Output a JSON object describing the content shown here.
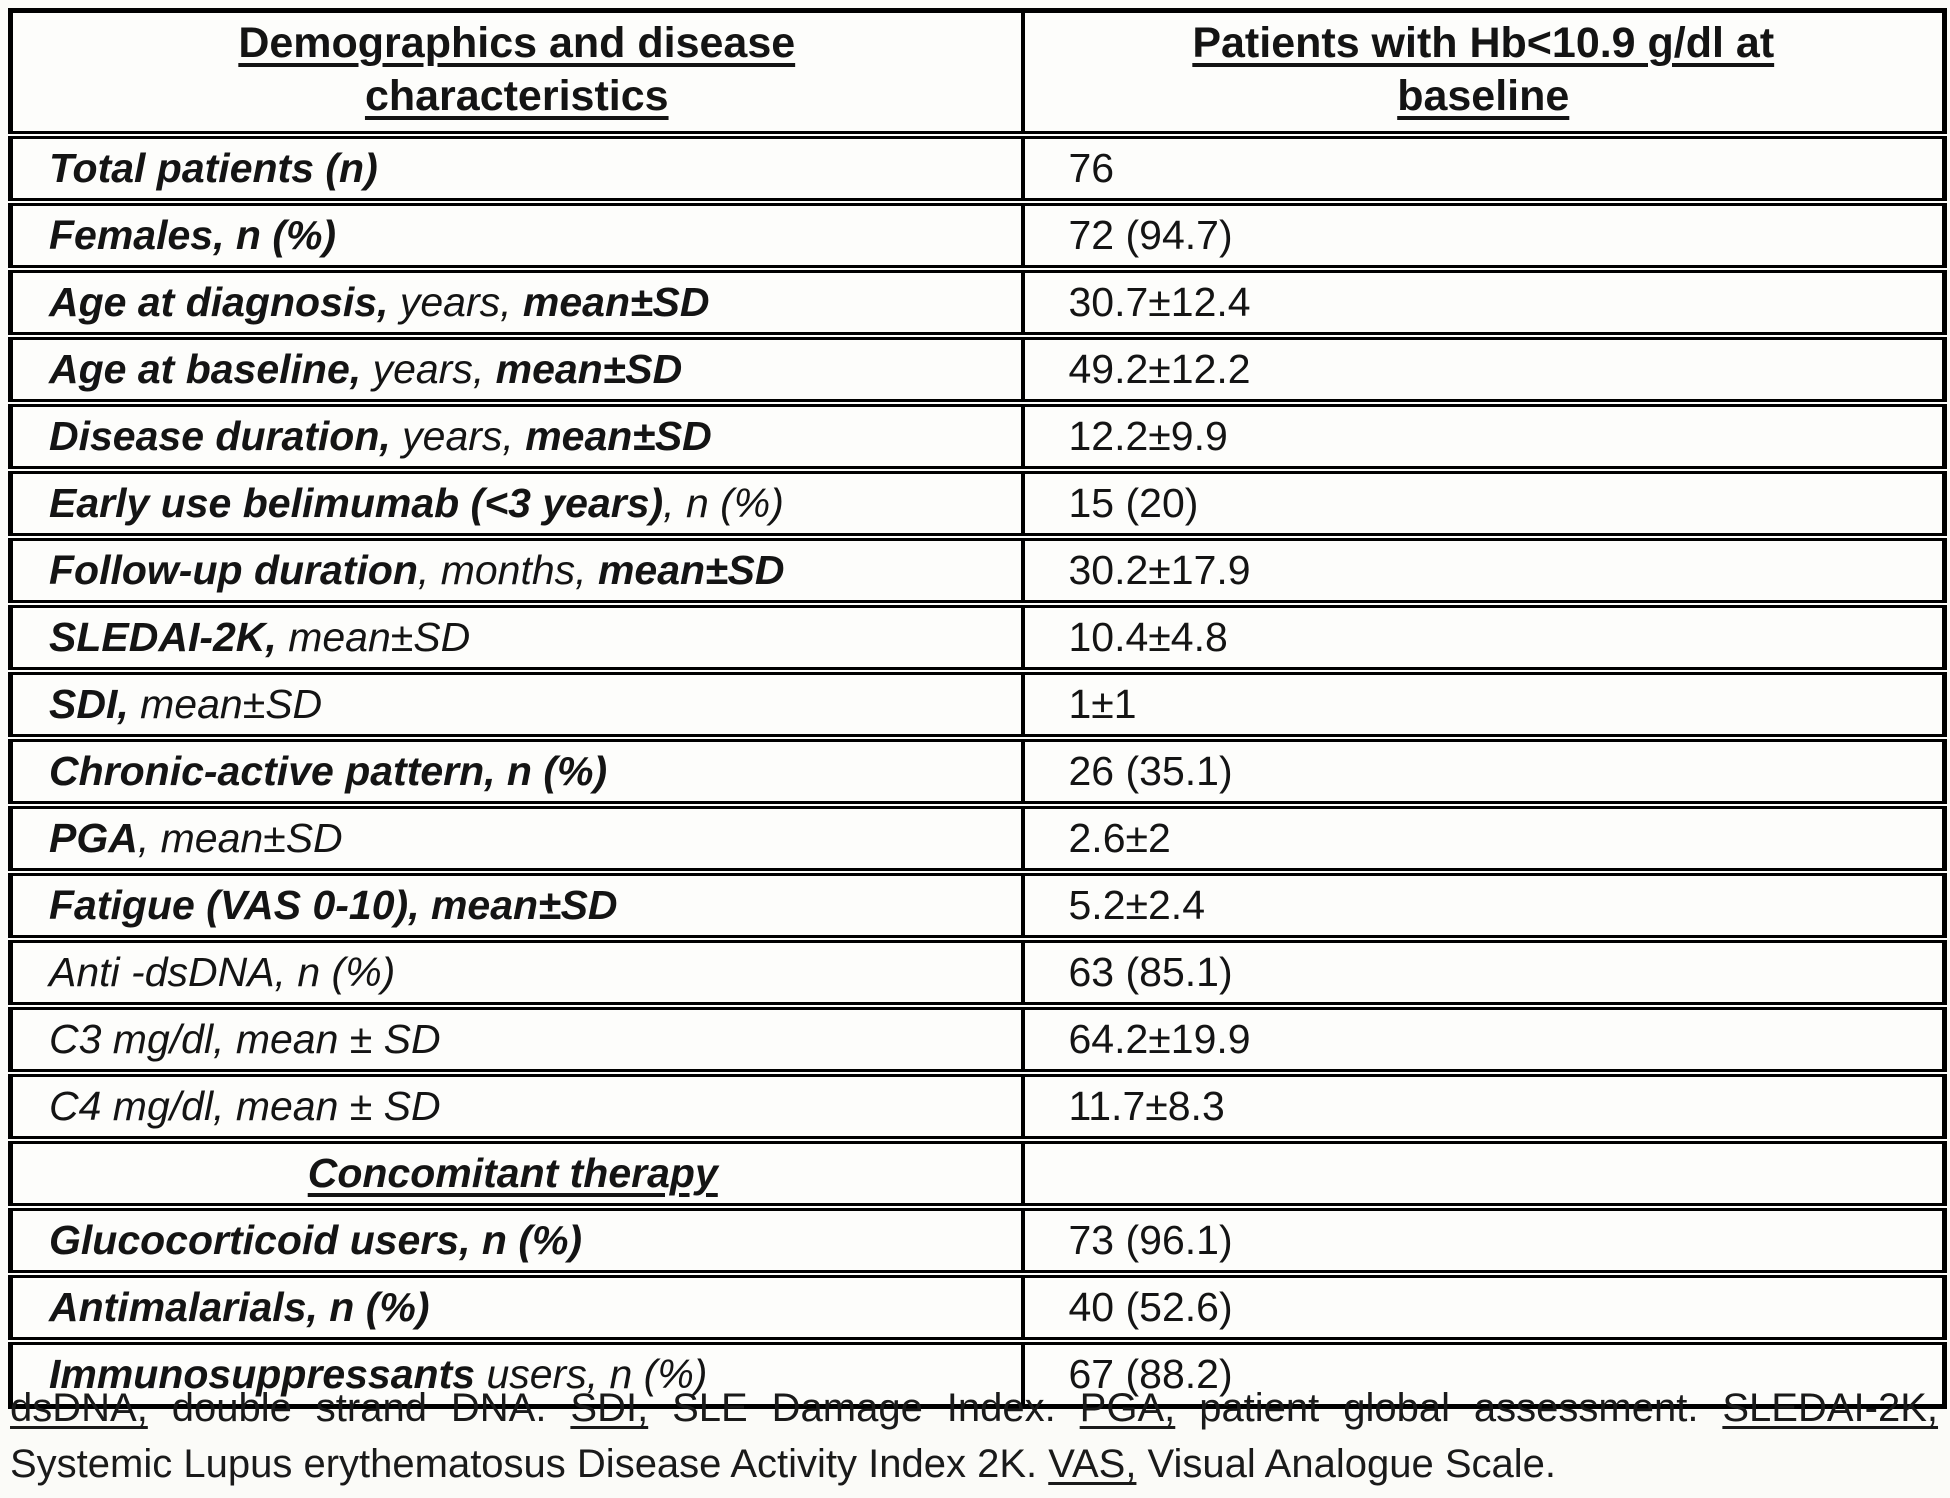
{
  "table": {
    "columns": [
      {
        "title_lines": [
          "Demographics and disease",
          "characteristics"
        ]
      },
      {
        "title_lines": [
          "Patients with Hb<10.9 g/dl at",
          "baseline"
        ]
      }
    ],
    "rows": [
      {
        "label": [
          {
            "t": "Total patients (n)",
            "b": true
          }
        ],
        "value": "76"
      },
      {
        "label": [
          {
            "t": "Females, n (%)",
            "b": true
          }
        ],
        "value": "72 (94.7)"
      },
      {
        "label": [
          {
            "t": "Age at diagnosis,",
            "b": true
          },
          {
            "t": " years,"
          },
          {
            "t": " mean±SD",
            "b": true
          }
        ],
        "value": "30.7±12.4"
      },
      {
        "label": [
          {
            "t": "Age at baseline,",
            "b": true
          },
          {
            "t": " years,"
          },
          {
            "t": " mean±SD",
            "b": true
          }
        ],
        "value": "49.2±12.2"
      },
      {
        "label": [
          {
            "t": "Disease duration,",
            "b": true
          },
          {
            "t": " years,"
          },
          {
            "t": " mean±SD",
            "b": true
          }
        ],
        "value": "12.2±9.9"
      },
      {
        "label": [
          {
            "t": "Early use belimumab (<3 years)",
            "b": true
          },
          {
            "t": ", n (%)"
          }
        ],
        "value": "15 (20)"
      },
      {
        "label": [
          {
            "t": "Follow-up duration",
            "b": true
          },
          {
            "t": ", months,"
          },
          {
            "t": " mean±SD",
            "b": true
          }
        ],
        "value": "30.2±17.9"
      },
      {
        "label": [
          {
            "t": "SLEDAI-2K,",
            "b": true
          },
          {
            "t": " mean±SD"
          }
        ],
        "value": "10.4±4.8"
      },
      {
        "label": [
          {
            "t": "SDI,",
            "b": true
          },
          {
            "t": " mean±SD"
          }
        ],
        "value": "1±1"
      },
      {
        "label": [
          {
            "t": "Chronic-active pattern, n (%)",
            "b": true
          }
        ],
        "value": "26 (35.1)"
      },
      {
        "label": [
          {
            "t": "PGA",
            "b": true
          },
          {
            "t": ", mean±SD"
          }
        ],
        "value": "2.6±2"
      },
      {
        "label": [
          {
            "t": "Fatigue (VAS 0-10), mean±SD",
            "b": true
          }
        ],
        "value": "5.2±2.4"
      },
      {
        "label": [
          {
            "t": "Anti -dsDNA, n (%)"
          }
        ],
        "value": "63 (85.1)"
      },
      {
        "label": [
          {
            "t": "C3 mg/dl, mean ± SD"
          }
        ],
        "value": "64.2±19.9"
      },
      {
        "label": [
          {
            "t": "C4 mg/dl, mean ± SD"
          }
        ],
        "value": "11.7±8.3"
      },
      {
        "label": [
          {
            "t": "Concomitant therapy",
            "b": true,
            "u": true
          }
        ],
        "value": "",
        "center": true
      },
      {
        "label": [
          {
            "t": "Glucocorticoid users, n (%)",
            "b": true
          }
        ],
        "value": "73 (96.1)"
      },
      {
        "label": [
          {
            "t": "Antimalarials, n (%)",
            "b": true
          }
        ],
        "value": "40 (52.6)"
      },
      {
        "label": [
          {
            "t": "Immunosuppressants",
            "b": true
          },
          {
            "t": " users, n (%)"
          }
        ],
        "value": "67 (88.2)"
      }
    ]
  },
  "footnote": {
    "line1": [
      {
        "t": "dsDNA,",
        "u": true
      },
      {
        "t": " double strand DNA. "
      },
      {
        "t": "SDI,",
        "u": true
      },
      {
        "t": " SLE Damage Index. "
      },
      {
        "t": "PGA,",
        "u": true
      },
      {
        "t": " patient global assessment. "
      },
      {
        "t": "SLEDAI-2K,",
        "u": true
      }
    ],
    "line2": [
      {
        "t": "Systemic Lupus erythematosus Disease Activity Index 2K. "
      },
      {
        "t": "VAS,",
        "u": true
      },
      {
        "t": " Visual Analogue Scale."
      }
    ]
  },
  "colors": {
    "border": "#000000",
    "text": "#141414",
    "background": "#fbfbf8"
  }
}
